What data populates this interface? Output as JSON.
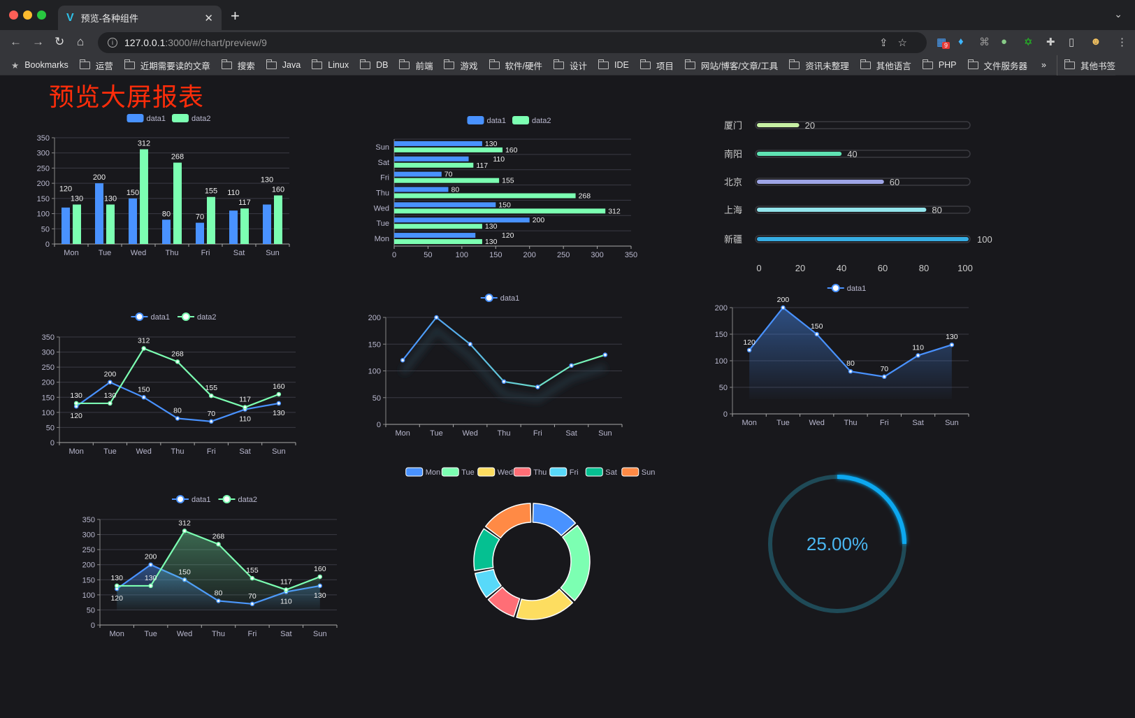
{
  "browser": {
    "tab_title": "预览-各种组件",
    "tab_icon": "v-logo-icon",
    "url_host": "127.0.0.1",
    "url_rest": ":3000/#/chart/preview/9",
    "extension_badge": "9",
    "bookmarks_label": "Bookmarks",
    "bookmarks": [
      "运营",
      "近期需要读的文章",
      "搜索",
      "Java",
      "Linux",
      "DB",
      "前端",
      "游戏",
      "软件/硬件",
      "设计",
      "IDE",
      "项目",
      "网站/博客/文章/工具",
      "资讯未整理",
      "其他语言",
      "PHP",
      "文件服务器"
    ],
    "more": "»",
    "other_bookmarks": "其他书签"
  },
  "page": {
    "title": "预览大屏报表",
    "title_color": "#ff2d0a",
    "background": "#18181c"
  },
  "colors": {
    "data1": "#4992ff",
    "data2": "#7cffb2",
    "axis_text": "#b9b8ce",
    "grid": "#3a3a44"
  },
  "chart_data": [
    {
      "type": "bar",
      "legend": [
        "data1",
        "data2"
      ],
      "categories": [
        "Mon",
        "Tue",
        "Wed",
        "Thu",
        "Fri",
        "Sat",
        "Sun"
      ],
      "series": [
        {
          "name": "data1",
          "values": [
            120,
            200,
            150,
            80,
            70,
            110,
            130
          ]
        },
        {
          "name": "data2",
          "values": [
            130,
            130,
            312,
            268,
            155,
            117,
            160
          ]
        }
      ],
      "ylim": [
        0,
        350
      ],
      "yticks": [
        "0",
        "50",
        "100",
        "150",
        "200",
        "250",
        "300",
        "350"
      ],
      "grid": true,
      "legend_position": "top"
    },
    {
      "type": "bar",
      "orientation": "horizontal",
      "legend": [
        "data1",
        "data2"
      ],
      "categories": [
        "Mon",
        "Tue",
        "Wed",
        "Thu",
        "Fri",
        "Sat",
        "Sun"
      ],
      "series": [
        {
          "name": "data1",
          "values": [
            120,
            200,
            150,
            80,
            70,
            110,
            130
          ]
        },
        {
          "name": "data2",
          "values": [
            130,
            130,
            312,
            268,
            155,
            117,
            160
          ]
        }
      ],
      "xlim": [
        0,
        350
      ],
      "xticks": [
        "0",
        "50",
        "100",
        "150",
        "200",
        "250",
        "300",
        "350"
      ],
      "legend_position": "top"
    },
    {
      "type": "bar",
      "orientation": "horizontal",
      "categories": [
        "厦门",
        "南阳",
        "北京",
        "上海",
        "新疆"
      ],
      "values": [
        20,
        40,
        60,
        80,
        100
      ],
      "colors": [
        "#c7f0a4",
        "#5fe3b3",
        "#9ea5e6",
        "#93e5ec",
        "#36ade3"
      ],
      "xlim": [
        0,
        100
      ],
      "xticks": [
        "0",
        "20",
        "40",
        "60",
        "80",
        "100"
      ]
    },
    {
      "type": "line",
      "legend": [
        "data1",
        "data2"
      ],
      "categories": [
        "Mon",
        "Tue",
        "Wed",
        "Thu",
        "Fri",
        "Sat",
        "Sun"
      ],
      "series": [
        {
          "name": "data1",
          "values": [
            120,
            200,
            150,
            80,
            70,
            110,
            130
          ]
        },
        {
          "name": "data2",
          "values": [
            130,
            130,
            312,
            268,
            155,
            117,
            160
          ]
        }
      ],
      "ylim": [
        0,
        350
      ],
      "yticks": [
        "0",
        "50",
        "100",
        "150",
        "200",
        "250",
        "300",
        "350"
      ],
      "grid": true
    },
    {
      "type": "line",
      "legend": [
        "data1"
      ],
      "categories": [
        "Mon",
        "Tue",
        "Wed",
        "Thu",
        "Fri",
        "Sat",
        "Sun"
      ],
      "series": [
        {
          "name": "data1",
          "values": [
            120,
            200,
            150,
            80,
            70,
            110,
            130
          ]
        }
      ],
      "ylim": [
        0,
        200
      ],
      "yticks": [
        "0",
        "50",
        "100",
        "150",
        "200"
      ],
      "grid": true,
      "line_gradient": [
        "#4992ff",
        "#7cffb2"
      ]
    },
    {
      "type": "area",
      "legend": [
        "data1"
      ],
      "categories": [
        "Mon",
        "Tue",
        "Wed",
        "Thu",
        "Fri",
        "Sat",
        "Sun"
      ],
      "series": [
        {
          "name": "data1",
          "values": [
            120,
            200,
            150,
            80,
            70,
            110,
            130
          ]
        }
      ],
      "ylim": [
        0,
        200
      ],
      "yticks": [
        "0",
        "50",
        "100",
        "150",
        "200"
      ],
      "grid": true
    },
    {
      "type": "area",
      "legend": [
        "data1",
        "data2"
      ],
      "categories": [
        "Mon",
        "Tue",
        "Wed",
        "Thu",
        "Fri",
        "Sat",
        "Sun"
      ],
      "series": [
        {
          "name": "data1",
          "values": [
            120,
            200,
            150,
            80,
            70,
            110,
            130
          ]
        },
        {
          "name": "data2",
          "values": [
            130,
            130,
            312,
            268,
            155,
            117,
            160
          ]
        }
      ],
      "ylim": [
        0,
        350
      ],
      "yticks": [
        "0",
        "50",
        "100",
        "150",
        "200",
        "250",
        "300",
        "350"
      ],
      "grid": true
    },
    {
      "type": "pie",
      "donut": true,
      "legend": [
        "Mon",
        "Tue",
        "Wed",
        "Thu",
        "Fri",
        "Sat",
        "Sun"
      ],
      "categories": [
        "Mon",
        "Tue",
        "Wed",
        "Thu",
        "Fri",
        "Sat",
        "Sun"
      ],
      "values": [
        120,
        200,
        150,
        80,
        70,
        110,
        130
      ],
      "colors": [
        "#4992ff",
        "#7cffb2",
        "#fddd60",
        "#ff6e76",
        "#58d9f9",
        "#05c091",
        "#ff8a45"
      ]
    },
    {
      "type": "gauge",
      "value": 25,
      "max": 100,
      "label": "25.00%",
      "color": "#0ba8f0",
      "track_color": "#1f4a57"
    }
  ]
}
